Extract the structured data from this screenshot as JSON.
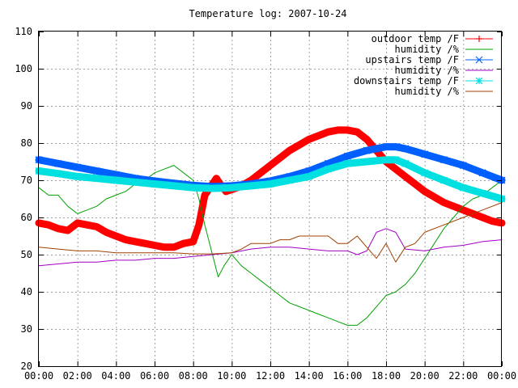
{
  "chart_data": {
    "type": "line",
    "title": "Temperature log: 2007-10-24",
    "xlabel": "",
    "ylabel": "",
    "xlim": [
      0,
      24
    ],
    "ylim": [
      20,
      110
    ],
    "xticks": [
      "00:00",
      "02:00",
      "04:00",
      "06:00",
      "08:00",
      "10:00",
      "12:00",
      "14:00",
      "16:00",
      "18:00",
      "20:00",
      "22:00",
      "00:00"
    ],
    "yticks": [
      20,
      30,
      40,
      50,
      60,
      70,
      80,
      90,
      100,
      110
    ],
    "grid": true,
    "legend_position": "top-right",
    "series": [
      {
        "name": "outdoor temp /F",
        "color": "#ff0000",
        "marker": "plus",
        "x": [
          0,
          0.5,
          1,
          1.5,
          2,
          2.5,
          3,
          3.5,
          4,
          4.5,
          5,
          5.5,
          6,
          6.5,
          7,
          7.5,
          8,
          8.3,
          8.6,
          9,
          9.2,
          9.4,
          9.7,
          10,
          10.5,
          11,
          11.5,
          12,
          12.5,
          13,
          13.5,
          14,
          14.5,
          15,
          15.5,
          16,
          16.5,
          17,
          17.5,
          18,
          18.5,
          19,
          19.5,
          20,
          20.5,
          21,
          21.5,
          22,
          22.5,
          23,
          23.5,
          24
        ],
        "y": [
          58.5,
          58,
          57,
          56.5,
          58.5,
          58,
          57.5,
          56,
          55,
          54,
          53.5,
          53,
          52.5,
          52,
          52,
          53,
          53.5,
          58,
          66,
          69,
          70.5,
          69,
          67,
          67.5,
          68.5,
          70,
          72,
          74,
          76,
          78,
          79.5,
          81,
          82,
          83,
          83.5,
          83.5,
          83,
          81,
          78,
          75,
          73,
          71,
          69,
          67,
          65.5,
          64,
          63,
          62,
          61,
          60,
          59,
          58.5
        ]
      },
      {
        "name": "humidity /%",
        "color": "#00a000",
        "marker": "none",
        "x": [
          0,
          0.5,
          1,
          1.5,
          2,
          2.5,
          3,
          3.5,
          4,
          4.5,
          5,
          5.5,
          6,
          6.5,
          7,
          7.5,
          8,
          8.3,
          8.6,
          9,
          9.3,
          9.6,
          10,
          10.5,
          11,
          11.5,
          12,
          12.5,
          13,
          13.5,
          14,
          14.5,
          15,
          15.5,
          16,
          16.5,
          17,
          17.5,
          18,
          18.5,
          19,
          19.5,
          20,
          20.5,
          21,
          21.5,
          22,
          22.5,
          23,
          23.5,
          24
        ],
        "y": [
          68,
          66,
          66,
          63,
          61,
          62,
          63,
          65,
          66,
          67,
          69,
          70,
          72,
          73,
          74,
          72,
          70,
          65,
          58,
          50,
          44,
          47,
          50,
          47,
          45,
          43,
          41,
          39,
          37,
          36,
          35,
          34,
          33,
          32,
          31,
          31,
          33,
          36,
          39,
          40,
          42,
          45,
          49,
          53,
          57,
          60,
          63,
          65,
          66,
          68,
          70
        ]
      },
      {
        "name": "upstairs temp /F",
        "color": "#0060ff",
        "marker": "x",
        "x": [
          0,
          1,
          2,
          3,
          4,
          5,
          6,
          7,
          8,
          9,
          10,
          11,
          12,
          13,
          14,
          15,
          16,
          17,
          18,
          18.5,
          19,
          20,
          21,
          22,
          23,
          24
        ],
        "y": [
          75.5,
          74.5,
          73.5,
          72.5,
          71.5,
          70.5,
          69.8,
          69.2,
          68.6,
          68.3,
          68.5,
          69,
          69.8,
          71,
          72.5,
          74.5,
          76.5,
          78,
          79,
          79,
          78.5,
          77,
          75.5,
          74,
          72,
          70
        ]
      },
      {
        "name": "humidity /%",
        "color": "#a000c0",
        "marker": "none",
        "x": [
          0,
          1,
          2,
          3,
          4,
          5,
          6,
          7,
          8,
          9,
          10,
          11,
          12,
          13,
          14,
          15,
          16,
          16.5,
          17,
          17.5,
          18,
          18.5,
          19,
          20,
          21,
          22,
          23,
          24
        ],
        "y": [
          47,
          47.5,
          48,
          48,
          48.5,
          48.5,
          49,
          49,
          49.5,
          50,
          50.5,
          51.5,
          52,
          52,
          51.5,
          51,
          51,
          50,
          51,
          56,
          57,
          56,
          51.5,
          51,
          52,
          52.5,
          53.5,
          54
        ]
      },
      {
        "name": "downstairs temp /F",
        "color": "#00e0e0",
        "marker": "star",
        "x": [
          0,
          1,
          2,
          3,
          4,
          5,
          6,
          7,
          8,
          9,
          10,
          11,
          12,
          13,
          14,
          15,
          16,
          17,
          18,
          18.5,
          19,
          20,
          21,
          22,
          23,
          24
        ],
        "y": [
          72.5,
          71.8,
          71,
          70.5,
          70,
          69.5,
          69,
          68.5,
          68,
          67.8,
          68,
          68.5,
          69,
          70,
          71,
          73,
          74.5,
          75,
          75.5,
          75.5,
          74.5,
          72,
          70,
          68,
          66.5,
          65
        ]
      },
      {
        "name": "humidity /%",
        "color": "#a04000",
        "marker": "none",
        "x": [
          0,
          1,
          2,
          3,
          4,
          5,
          6,
          7,
          8,
          9,
          10,
          10.5,
          11,
          11.5,
          12,
          12.5,
          13,
          13.5,
          14,
          14.5,
          15,
          15.5,
          16,
          16.5,
          17,
          17.5,
          18,
          18.5,
          19,
          19.5,
          20,
          21,
          22,
          23,
          24
        ],
        "y": [
          52,
          51.5,
          51,
          51,
          50.5,
          50.5,
          50.5,
          50.5,
          50.2,
          50.2,
          50.5,
          51.5,
          53,
          53,
          53,
          54,
          54,
          55,
          55,
          55,
          55,
          53,
          53,
          55,
          52,
          49,
          53,
          48,
          52,
          53,
          56,
          58,
          60,
          62,
          64
        ]
      }
    ]
  }
}
